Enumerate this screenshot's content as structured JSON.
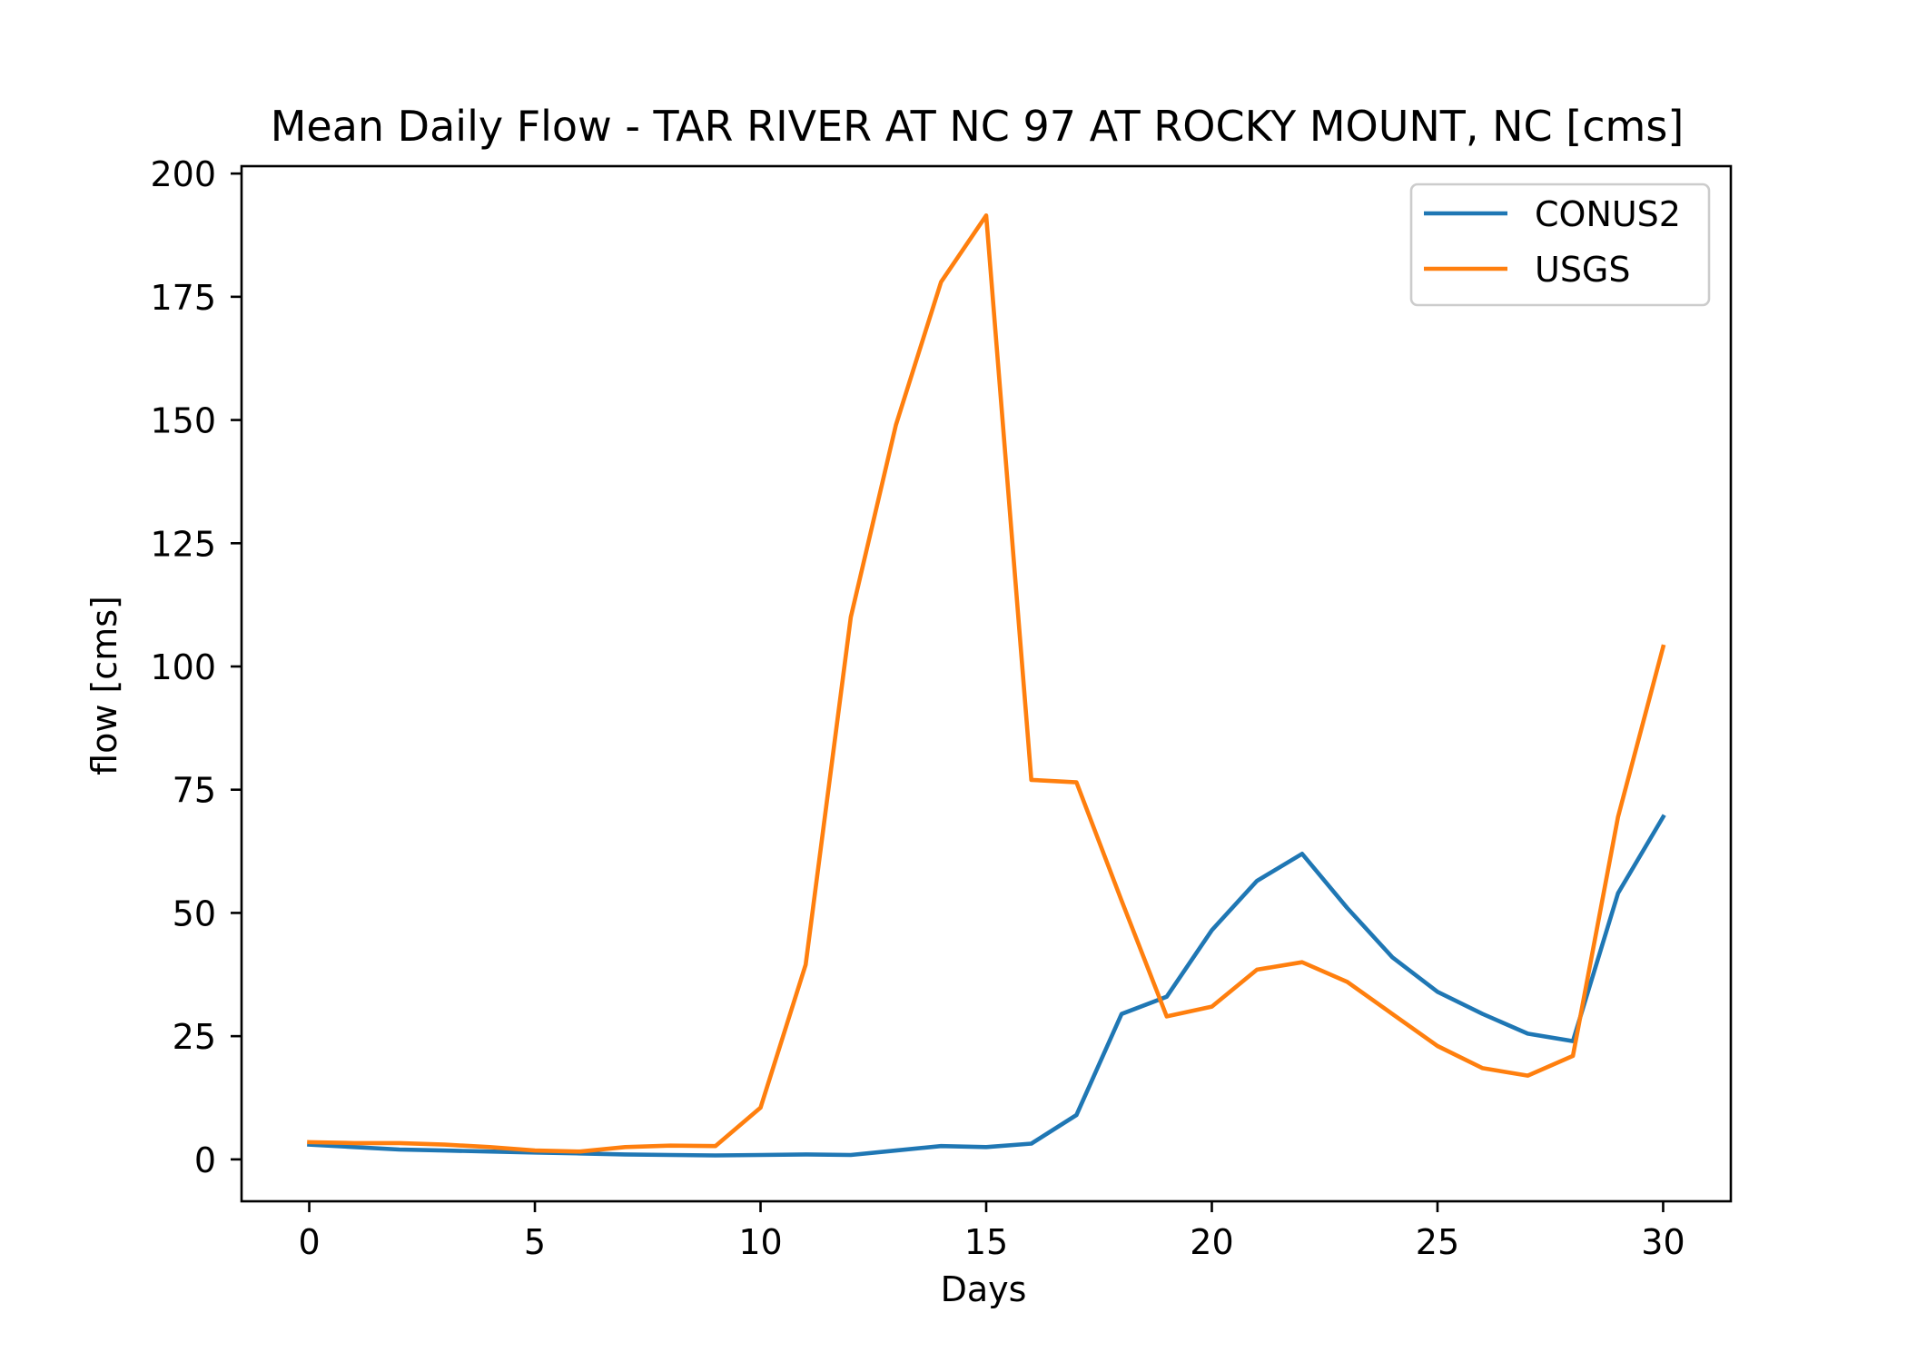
{
  "chart_data": {
    "type": "line",
    "title": "Mean Daily Flow - TAR RIVER AT NC 97 AT ROCKY MOUNT, NC [cms]",
    "xlabel": "Days",
    "ylabel": "flow [cms]",
    "xlim": [
      -1.5,
      31.5
    ],
    "ylim": [
      -8.5,
      201.5
    ],
    "xticks": [
      0,
      5,
      10,
      15,
      20,
      25,
      30
    ],
    "yticks": [
      0,
      25,
      50,
      75,
      100,
      125,
      150,
      175,
      200
    ],
    "grid": false,
    "legend_position": "upper right",
    "x": [
      0,
      1,
      2,
      3,
      4,
      5,
      6,
      7,
      8,
      9,
      10,
      11,
      12,
      13,
      14,
      15,
      16,
      17,
      18,
      19,
      20,
      21,
      22,
      23,
      24,
      25,
      26,
      27,
      28,
      29,
      30
    ],
    "series": [
      {
        "name": "CONUS2",
        "color": "#1f77b4",
        "values": [
          3.0,
          2.5,
          2.0,
          1.8,
          1.6,
          1.4,
          1.2,
          1.0,
          0.9,
          0.8,
          0.9,
          1.0,
          0.9,
          1.8,
          2.7,
          2.5,
          3.2,
          9.0,
          29.5,
          33.0,
          46.5,
          56.5,
          62.0,
          51.0,
          41.0,
          34.0,
          29.5,
          25.5,
          24.0,
          54.0,
          69.5
        ]
      },
      {
        "name": "USGS",
        "color": "#ff7f0e",
        "values": [
          3.5,
          3.3,
          3.3,
          3.0,
          2.5,
          1.8,
          1.6,
          2.5,
          2.8,
          2.7,
          10.5,
          39.5,
          110.0,
          149.0,
          178.0,
          191.5,
          77.0,
          76.5,
          52.5,
          29.0,
          31.0,
          38.5,
          40.0,
          36.0,
          29.5,
          23.0,
          18.5,
          17.0,
          21.0,
          69.5,
          104.0
        ]
      }
    ]
  }
}
